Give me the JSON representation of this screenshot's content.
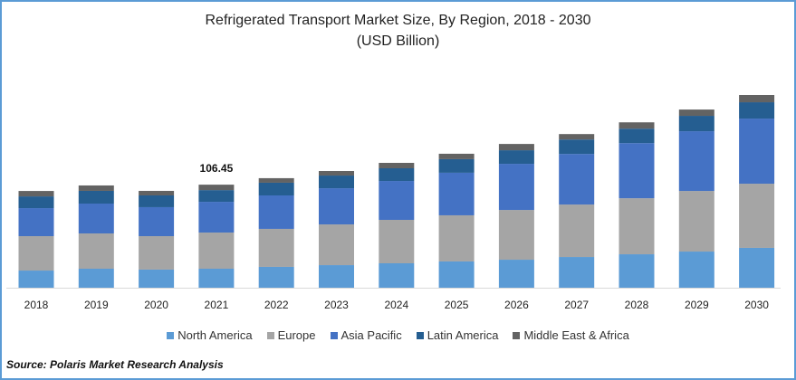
{
  "chart_data": {
    "type": "bar",
    "stacked": true,
    "title": "Refrigerated Transport Market Size, By Region, 2018 - 2030",
    "subtitle": "(USD Billion)",
    "xlabel": "",
    "ylabel": "",
    "ylim": [
      0,
      200
    ],
    "grid": false,
    "legend_position": "bottom",
    "categories": [
      "2018",
      "2019",
      "2020",
      "2021",
      "2022",
      "2023",
      "2024",
      "2025",
      "2026",
      "2027",
      "2028",
      "2029",
      "2030"
    ],
    "series": [
      {
        "name": "North America",
        "color": "#5b9bd5",
        "values": [
          17.7,
          19.6,
          18.7,
          19.6,
          21.5,
          23.3,
          25.2,
          27.1,
          28.9,
          31.7,
          34.5,
          37.3,
          41.1
        ]
      },
      {
        "name": "Europe",
        "color": "#a5a5a5",
        "values": [
          35.5,
          36.4,
          34.5,
          37.3,
          39.2,
          42.0,
          44.8,
          47.6,
          51.3,
          54.1,
          57.8,
          62.5,
          66.2
        ]
      },
      {
        "name": "Asia Pacific",
        "color": "#4472c4",
        "values": [
          28.9,
          30.8,
          29.9,
          31.7,
          34.5,
          37.3,
          40.1,
          43.9,
          47.6,
          52.2,
          56.9,
          61.6,
          67.2
        ]
      },
      {
        "name": "Latin America",
        "color": "#255e91",
        "values": [
          12.1,
          13.1,
          12.1,
          12.1,
          13.1,
          13.1,
          13.1,
          14.0,
          14.0,
          14.9,
          14.9,
          15.9,
          16.8
        ]
      },
      {
        "name": "Middle East & Africa",
        "color": "#636363",
        "values": [
          5.6,
          5.6,
          4.7,
          5.6,
          4.7,
          4.7,
          5.6,
          5.6,
          6.5,
          5.6,
          6.5,
          6.5,
          7.5
        ]
      }
    ],
    "annotations": [
      {
        "category": "2021",
        "text": "106.45"
      }
    ]
  },
  "source": "Source: Polaris  Market Research Analysis"
}
